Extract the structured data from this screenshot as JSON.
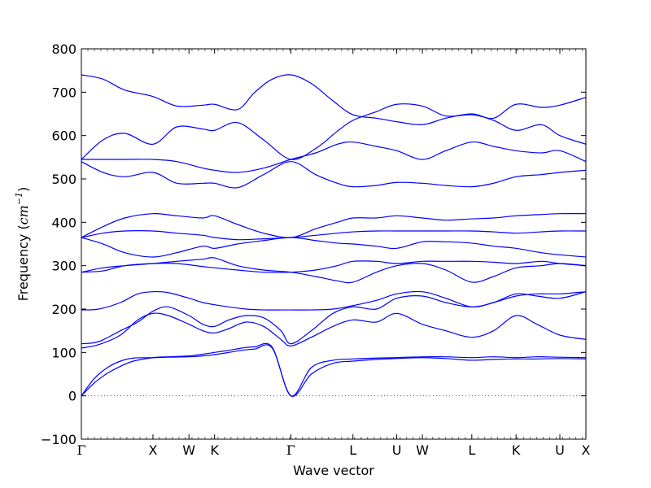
{
  "chart_data": {
    "type": "line",
    "title": "",
    "xlabel": "Wave vector",
    "ylabel": {
      "prefix": "Frequency (",
      "unit_base": "cm",
      "unit_exp": "−1",
      "suffix": ")"
    },
    "ylim": [
      -100,
      800
    ],
    "yticks": [
      -100,
      0,
      100,
      200,
      300,
      400,
      500,
      600,
      700,
      800
    ],
    "xlim": [
      0,
      11.63
    ],
    "xticks": [
      {
        "label": "Γ",
        "x": 0,
        "greek": true
      },
      {
        "label": "X",
        "x": 1.65
      },
      {
        "label": "W",
        "x": 2.48
      },
      {
        "label": "K",
        "x": 3.07
      },
      {
        "label": "Γ",
        "x": 4.83,
        "greek": true
      },
      {
        "label": "L",
        "x": 6.26
      },
      {
        "label": "U",
        "x": 7.27
      },
      {
        "label": "W",
        "x": 7.86
      },
      {
        "label": "L",
        "x": 9.0
      },
      {
        "label": "K",
        "x": 10.02
      },
      {
        "label": "U",
        "x": 11.03
      },
      {
        "label": "X",
        "x": 11.63
      }
    ],
    "zero_line": 0,
    "line_color": "#0000ff",
    "grid": false,
    "series": [
      {
        "x": [
          0,
          0.3,
          0.6,
          0.9,
          1.2,
          1.65,
          2.0,
          2.48,
          2.8,
          3.07,
          3.4,
          3.7,
          4.0,
          4.4,
          4.83,
          5.3,
          5.8,
          6.26,
          6.8,
          7.27,
          7.86,
          8.4,
          9.0,
          9.5,
          10.02,
          10.5,
          11.03,
          11.63
        ],
        "y": [
          0,
          30,
          52,
          68,
          80,
          88,
          90,
          92,
          96,
          100,
          105,
          110,
          113,
          112,
          0,
          65,
          82,
          85,
          87,
          88,
          90,
          90,
          88,
          90,
          88,
          90,
          89,
          88
        ]
      },
      {
        "x": [
          0,
          0.3,
          0.6,
          0.9,
          1.2,
          1.65,
          2.0,
          2.48,
          2.8,
          3.07,
          3.4,
          3.7,
          4.0,
          4.4,
          4.83,
          5.3,
          5.8,
          6.26,
          6.8,
          7.27,
          7.86,
          8.4,
          9.0,
          9.5,
          10.02,
          10.5,
          11.03,
          11.63
        ],
        "y": [
          0,
          40,
          65,
          80,
          87,
          88,
          89,
          90,
          92,
          95,
          100,
          105,
          108,
          110,
          0,
          50,
          75,
          80,
          84,
          86,
          88,
          86,
          82,
          84,
          85,
          85,
          86,
          85
        ]
      },
      {
        "x": [
          0,
          0.4,
          0.9,
          1.3,
          1.65,
          2.0,
          2.48,
          2.8,
          3.07,
          3.4,
          3.8,
          4.2,
          4.6,
          4.83,
          5.3,
          5.8,
          6.26,
          6.8,
          7.27,
          7.86,
          8.4,
          9.0,
          9.5,
          10.02,
          10.5,
          11.03,
          11.63
        ],
        "y": [
          110,
          118,
          140,
          175,
          190,
          185,
          165,
          150,
          145,
          155,
          170,
          160,
          130,
          115,
          135,
          160,
          175,
          170,
          190,
          165,
          150,
          135,
          150,
          185,
          165,
          140,
          130
        ]
      },
      {
        "x": [
          0,
          0.4,
          0.9,
          1.3,
          1.65,
          2.0,
          2.48,
          2.8,
          3.07,
          3.4,
          3.8,
          4.2,
          4.6,
          4.83,
          5.3,
          5.8,
          6.26,
          6.8,
          7.27,
          7.86,
          8.4,
          9.0,
          9.5,
          10.02,
          10.5,
          11.03,
          11.63
        ],
        "y": [
          120,
          125,
          150,
          170,
          195,
          205,
          185,
          165,
          160,
          175,
          185,
          180,
          150,
          120,
          150,
          190,
          205,
          200,
          225,
          230,
          215,
          205,
          215,
          235,
          230,
          225,
          240
        ]
      },
      {
        "x": [
          0,
          0.4,
          0.9,
          1.3,
          1.65,
          2.0,
          2.48,
          2.8,
          3.07,
          3.4,
          3.8,
          4.2,
          4.6,
          4.83,
          5.3,
          5.8,
          6.26,
          6.8,
          7.27,
          7.86,
          8.4,
          9.0,
          9.5,
          10.02,
          10.5,
          11.03,
          11.63
        ],
        "y": [
          198,
          200,
          215,
          235,
          240,
          238,
          225,
          215,
          210,
          205,
          200,
          198,
          198,
          198,
          198,
          200,
          208,
          220,
          235,
          240,
          225,
          205,
          215,
          230,
          235,
          235,
          240
        ]
      },
      {
        "x": [
          0,
          0.5,
          1.0,
          1.65,
          2.2,
          2.8,
          3.07,
          3.6,
          4.2,
          4.83,
          5.4,
          5.9,
          6.26,
          6.8,
          7.27,
          7.86,
          8.4,
          9.0,
          9.5,
          10.02,
          10.6,
          11.03,
          11.63
        ],
        "y": [
          285,
          288,
          300,
          305,
          305,
          298,
          295,
          290,
          285,
          285,
          290,
          300,
          310,
          310,
          305,
          310,
          310,
          310,
          308,
          305,
          310,
          305,
          300
        ]
      },
      {
        "x": [
          0,
          0.5,
          1.0,
          1.65,
          2.2,
          2.8,
          3.07,
          3.6,
          4.2,
          4.83,
          5.4,
          5.9,
          6.26,
          6.8,
          7.27,
          7.86,
          8.4,
          9.0,
          9.5,
          10.02,
          10.6,
          11.03,
          11.63
        ],
        "y": [
          285,
          295,
          300,
          305,
          310,
          315,
          318,
          300,
          290,
          285,
          275,
          265,
          262,
          285,
          300,
          305,
          290,
          262,
          275,
          295,
          300,
          305,
          300
        ]
      },
      {
        "x": [
          0,
          0.5,
          1.0,
          1.65,
          2.2,
          2.8,
          3.07,
          3.6,
          4.2,
          4.83,
          5.4,
          5.9,
          6.26,
          6.8,
          7.27,
          7.86,
          8.4,
          9.0,
          9.5,
          10.02,
          10.6,
          11.03,
          11.63
        ],
        "y": [
          365,
          375,
          380,
          380,
          375,
          370,
          365,
          360,
          362,
          365,
          370,
          375,
          378,
          380,
          380,
          380,
          380,
          380,
          378,
          375,
          378,
          380,
          380
        ]
      },
      {
        "x": [
          0,
          0.5,
          1.0,
          1.65,
          2.2,
          2.8,
          3.07,
          3.6,
          4.2,
          4.83,
          5.4,
          5.9,
          6.26,
          6.8,
          7.27,
          7.86,
          8.4,
          9.0,
          9.5,
          10.02,
          10.6,
          11.03,
          11.63
        ],
        "y": [
          365,
          390,
          410,
          420,
          415,
          410,
          415,
          395,
          375,
          365,
          385,
          400,
          410,
          410,
          415,
          410,
          405,
          408,
          410,
          415,
          418,
          420,
          420
        ]
      },
      {
        "x": [
          0,
          0.5,
          1.0,
          1.65,
          2.2,
          2.8,
          3.07,
          3.6,
          4.2,
          4.83,
          5.4,
          5.9,
          6.26,
          6.8,
          7.27,
          7.86,
          8.4,
          9.0,
          9.5,
          10.02,
          10.6,
          11.03,
          11.63
        ],
        "y": [
          365,
          350,
          330,
          320,
          330,
          345,
          340,
          350,
          358,
          365,
          358,
          352,
          350,
          345,
          340,
          355,
          355,
          352,
          345,
          340,
          330,
          325,
          320
        ]
      },
      {
        "x": [
          0,
          0.5,
          1.0,
          1.65,
          2.2,
          2.8,
          3.07,
          3.6,
          4.2,
          4.83,
          5.4,
          5.9,
          6.26,
          6.8,
          7.27,
          7.86,
          8.4,
          9.0,
          9.5,
          10.02,
          10.6,
          11.03,
          11.63
        ],
        "y": [
          540,
          515,
          505,
          515,
          490,
          490,
          490,
          480,
          510,
          540,
          510,
          490,
          482,
          485,
          492,
          490,
          485,
          482,
          490,
          505,
          510,
          515,
          520
        ]
      },
      {
        "x": [
          0,
          0.5,
          1.0,
          1.65,
          2.2,
          2.8,
          3.07,
          3.6,
          4.2,
          4.83,
          5.4,
          5.9,
          6.26,
          6.8,
          7.27,
          7.86,
          8.4,
          9.0,
          9.5,
          10.02,
          10.6,
          11.03,
          11.63
        ],
        "y": [
          545,
          545,
          545,
          545,
          540,
          525,
          520,
          515,
          525,
          545,
          560,
          580,
          585,
          575,
          565,
          545,
          565,
          585,
          575,
          565,
          560,
          565,
          540
        ]
      },
      {
        "x": [
          0,
          0.5,
          1.0,
          1.65,
          2.2,
          2.8,
          3.07,
          3.6,
          4.2,
          4.83,
          5.4,
          5.9,
          6.26,
          6.8,
          7.27,
          7.86,
          8.4,
          9.0,
          9.5,
          10.02,
          10.6,
          11.03,
          11.63
        ],
        "y": [
          545,
          590,
          605,
          580,
          620,
          615,
          612,
          630,
          590,
          545,
          570,
          610,
          635,
          655,
          672,
          668,
          645,
          648,
          635,
          612,
          625,
          600,
          580
        ]
      },
      {
        "x": [
          0,
          0.5,
          1.0,
          1.65,
          2.2,
          2.8,
          3.07,
          3.6,
          4.0,
          4.4,
          4.83,
          5.3,
          5.8,
          6.26,
          6.8,
          7.27,
          7.86,
          8.4,
          9.0,
          9.5,
          10.02,
          10.6,
          11.03,
          11.63
        ],
        "y": [
          740,
          730,
          705,
          690,
          668,
          670,
          672,
          660,
          700,
          730,
          740,
          720,
          680,
          648,
          640,
          632,
          625,
          640,
          650,
          640,
          672,
          665,
          670,
          688
        ]
      }
    ]
  }
}
